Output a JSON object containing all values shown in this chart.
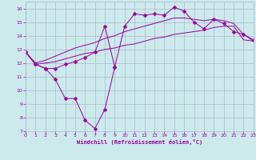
{
  "background_color": "#cce9ec",
  "line_color": "#990099",
  "grid_color": "#aabbcc",
  "xlabel": "Windchill (Refroidissement éolien,°C)",
  "xlabel_color": "#990099",
  "x_all": [
    0,
    1,
    2,
    3,
    4,
    5,
    6,
    7,
    8,
    9,
    10,
    11,
    12,
    13,
    14,
    15,
    16,
    17,
    18,
    19,
    20,
    21,
    22,
    23
  ],
  "curve_jagged_x": [
    0,
    1,
    2,
    3,
    4,
    5,
    6,
    7,
    8,
    9
  ],
  "curve_jagged_y": [
    12.8,
    11.9,
    11.6,
    10.8,
    9.4,
    9.4,
    7.8,
    7.2,
    8.6,
    11.7
  ],
  "curve_marked_y": [
    12.8,
    11.9,
    11.6,
    11.6,
    11.9,
    12.1,
    12.4,
    12.8,
    14.7,
    11.7,
    14.7,
    15.6,
    15.5,
    15.6,
    15.5,
    16.1,
    15.8,
    15.0,
    14.5,
    15.2,
    14.9,
    14.3,
    14.1,
    13.7
  ],
  "curve_upper_y": [
    12.8,
    12.0,
    12.2,
    12.5,
    12.8,
    13.1,
    13.3,
    13.5,
    13.8,
    14.0,
    14.3,
    14.5,
    14.7,
    14.9,
    15.1,
    15.3,
    15.3,
    15.2,
    15.1,
    15.2,
    15.1,
    14.9,
    14.1,
    13.6
  ],
  "curve_lower_y": [
    12.8,
    11.9,
    12.0,
    12.1,
    12.3,
    12.5,
    12.7,
    12.8,
    13.0,
    13.1,
    13.3,
    13.4,
    13.6,
    13.8,
    13.9,
    14.1,
    14.2,
    14.3,
    14.4,
    14.6,
    14.7,
    14.7,
    13.7,
    13.6
  ],
  "ylim": [
    7,
    16.5
  ],
  "xlim": [
    0,
    23
  ],
  "yticks": [
    7,
    8,
    9,
    10,
    11,
    12,
    13,
    14,
    15,
    16
  ],
  "xticks": [
    0,
    1,
    2,
    3,
    4,
    5,
    6,
    7,
    8,
    9,
    10,
    11,
    12,
    13,
    14,
    15,
    16,
    17,
    18,
    19,
    20,
    21,
    22,
    23
  ],
  "markersize": 2.5
}
